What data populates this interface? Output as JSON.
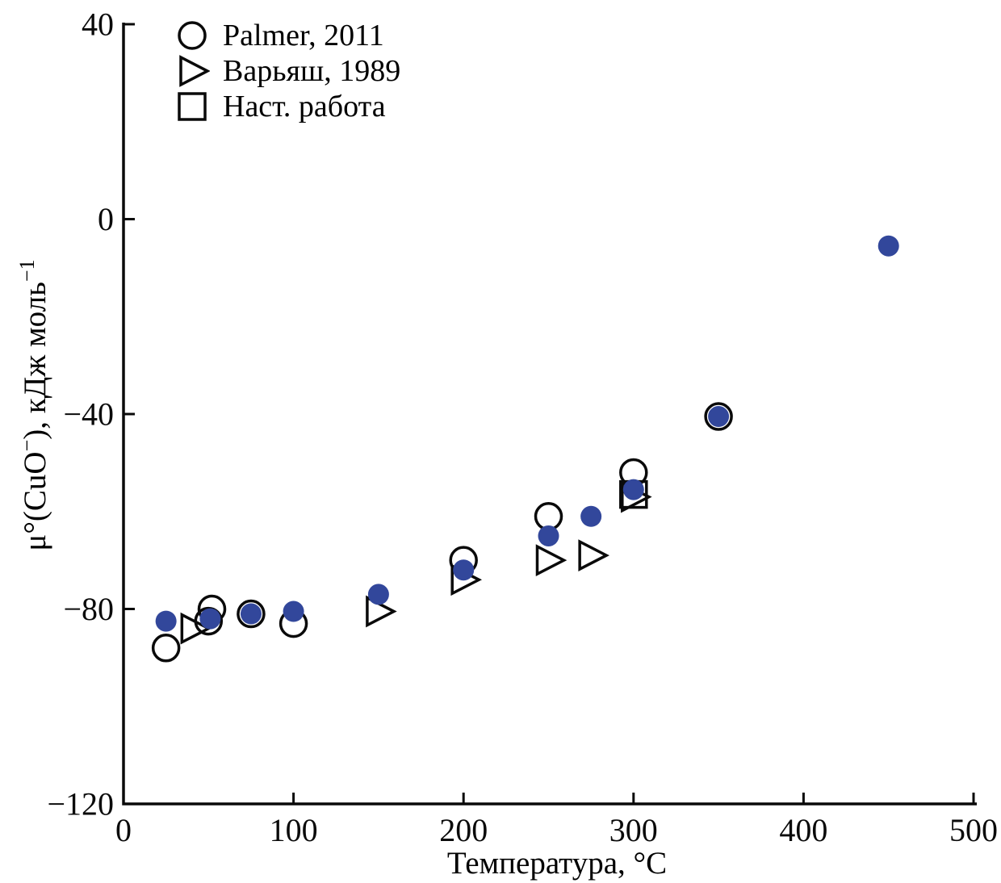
{
  "figure": {
    "background": "#ffffff",
    "line_color": "#0a0a0a",
    "accent_blue": "#32479B"
  },
  "chart_data": {
    "type": "scatter",
    "title": "",
    "xlabel": "Температура, °C",
    "ylabel": "μ°(CuO⁻), кДж моль⁻¹",
    "ylabel_parts": {
      "pre": "μ°(CuO",
      "sup1": "−",
      "mid": "), кДж моль",
      "sup2": "−1"
    },
    "xlim": [
      0,
      500
    ],
    "ylim": [
      -120,
      40
    ],
    "xticks": [
      0,
      100,
      200,
      300,
      400,
      500
    ],
    "yticks": [
      40,
      0,
      -40,
      -80,
      -120
    ],
    "grid": false,
    "legend_position": "top-left-inside",
    "series": [
      {
        "name": "Palmer, 2011",
        "marker": "circle-open",
        "color": "#0a0a0a",
        "in_legend": true,
        "points": [
          [
            25,
            -88
          ],
          [
            50,
            -82.5
          ],
          [
            52,
            -80
          ],
          [
            75,
            -81
          ],
          [
            100,
            -83
          ],
          [
            200,
            -70
          ],
          [
            250,
            -61
          ],
          [
            300,
            -52
          ],
          [
            350,
            -40.5
          ]
        ]
      },
      {
        "name": "Варьяш, 1989",
        "marker": "triangle-open",
        "color": "#0a0a0a",
        "in_legend": true,
        "points": [
          [
            41,
            -84
          ],
          [
            150,
            -80.5
          ],
          [
            200,
            -74
          ],
          [
            250,
            -70
          ],
          [
            275,
            -69
          ],
          [
            300,
            -57
          ]
        ]
      },
      {
        "name": "Наст. работа",
        "marker": "square-open",
        "color": "#0a0a0a",
        "in_legend": true,
        "points": [
          [
            300,
            -56.5
          ]
        ]
      },
      {
        "name": "filled-blue",
        "marker": "circle-filled",
        "color": "#32479B",
        "in_legend": false,
        "points": [
          [
            25,
            -82.5
          ],
          [
            51,
            -82
          ],
          [
            75,
            -81
          ],
          [
            100,
            -80.5
          ],
          [
            150,
            -77
          ],
          [
            200,
            -72
          ],
          [
            250,
            -65
          ],
          [
            275,
            -61
          ],
          [
            300,
            -55.5
          ],
          [
            350,
            -40.5
          ],
          [
            450,
            -5.5
          ]
        ]
      }
    ]
  }
}
